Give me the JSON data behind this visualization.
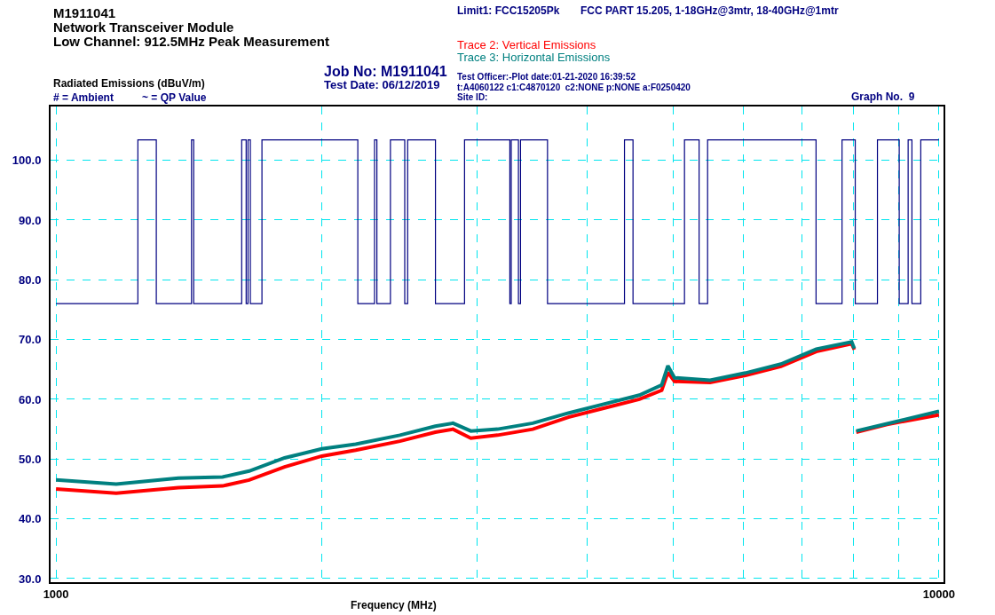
{
  "chart_data": {
    "type": "line",
    "title": "M1911041",
    "subtitle": "Network Transceiver Module\nLow Channel: 912.5MHz Peak Measurement",
    "xlabel": "Frequency (MHz)",
    "ylabel": "Radiated Emissions (dBuV/m)",
    "annotations": [
      "FCC PART 15.205, 1-18GHz@3mtr, 18-40GHz@1mtr",
      "Job No: M1911041",
      "Test Date: 06/12/2019",
      "# = Ambient",
      "~ = QP Value",
      "Test Officer:-Plot date:01-21-2020 16:39:52",
      "t:A4060122 c1:C4870120  c2:NONE p:NONE a:F0250420",
      "Site ID:",
      "Graph No.  9"
    ],
    "log": "x",
    "grid": true,
    "legend": false,
    "marker": "none",
    "line_style": "solid",
    "xlim": [
      986,
      10120
    ],
    "ylim": [
      29.4,
      109
    ],
    "xticks": [
      1000,
      {
        "value": 2000,
        "label": null
      },
      {
        "value": 3000,
        "label": null
      },
      {
        "value": 4000,
        "label": null
      },
      {
        "value": 5000,
        "label": null
      },
      {
        "value": 6000,
        "label": null
      },
      {
        "value": 7000,
        "label": null
      },
      {
        "value": 8000,
        "label": null
      },
      {
        "value": 9000,
        "label": null
      },
      10000
    ],
    "yticks": [
      {
        "value": 30,
        "label": "30.0"
      },
      {
        "value": 40,
        "label": "40.0"
      },
      {
        "value": 50,
        "label": "50.0"
      },
      {
        "value": 60,
        "label": "60.0"
      },
      {
        "value": 70,
        "label": "70.0"
      },
      {
        "value": 80,
        "label": "80.0"
      },
      {
        "value": 90,
        "label": "90.0"
      },
      {
        "value": 100,
        "label": "100.0"
      }
    ],
    "series": [
      {
        "name": "Limit1: FCC15205Pk",
        "type": "step",
        "color": "#000080",
        "x": [
          1000,
          1238,
          1299,
          1424,
          1432,
          1623,
          1642,
          1650,
          1660,
          1711,
          2197,
          2295,
          2309,
          2392,
          2483,
          2502,
          2690,
          2902,
          3266,
          3278,
          3340,
          3358,
          3603,
          4404,
          4503,
          5150,
          5350,
          5470,
          7258,
          7767,
          8039,
          8518,
          9016,
          9228,
          9320,
          9537,
          10000
        ],
        "values": [
          76,
          103.4,
          76,
          103.4,
          76,
          103.4,
          76,
          103.4,
          76,
          103.4,
          76,
          103.4,
          76,
          103.4,
          76,
          103.4,
          76,
          103.4,
          76,
          103.4,
          76,
          103.4,
          76,
          103.4,
          76,
          103.4,
          76,
          103.4,
          76,
          103.4,
          76,
          103.4,
          76,
          103.4,
          76,
          103.4,
          103.4
        ]
      },
      {
        "name": "Trace 2: Vertical Emissions",
        "color": "#ff0000",
        "x": [
          1000,
          1170,
          1376,
          1544,
          1655,
          1815,
          2000,
          2185,
          2452,
          2689,
          2816,
          2950,
          3163,
          3467,
          3805,
          4172,
          4578,
          4853,
          4932,
          5018,
          5506,
          6036,
          6622,
          7262,
          7965,
          8020,
          8040,
          8060,
          8734,
          10000
        ],
        "values": [
          45,
          44.3,
          45.2,
          45.5,
          46.5,
          48.7,
          50.5,
          51.5,
          53,
          54.5,
          55,
          53.5,
          54,
          55,
          57,
          58.5,
          60,
          61.5,
          64.5,
          63,
          62.8,
          64,
          65.5,
          68,
          69.3,
          68.3,
          null,
          54.5,
          55.8,
          57.4
        ]
      },
      {
        "name": "Trace 3: Horizontal Emissions",
        "color": "#008080",
        "x": [
          1000,
          1170,
          1376,
          1544,
          1655,
          1815,
          2000,
          2185,
          2452,
          2689,
          2816,
          2950,
          3163,
          3467,
          3805,
          4172,
          4578,
          4853,
          4932,
          5018,
          5506,
          6036,
          6622,
          7262,
          7965,
          8020,
          8040,
          8060,
          8734,
          10000
        ],
        "values": [
          46.5,
          45.8,
          46.8,
          47,
          48,
          50.2,
          51.7,
          52.5,
          54,
          55.5,
          56,
          54.7,
          55,
          56,
          57.7,
          59.2,
          60.7,
          62.4,
          65.6,
          63.6,
          63.2,
          64.4,
          65.9,
          68.4,
          69.6,
          68.5,
          null,
          54.7,
          55.9,
          58
        ]
      }
    ]
  }
}
